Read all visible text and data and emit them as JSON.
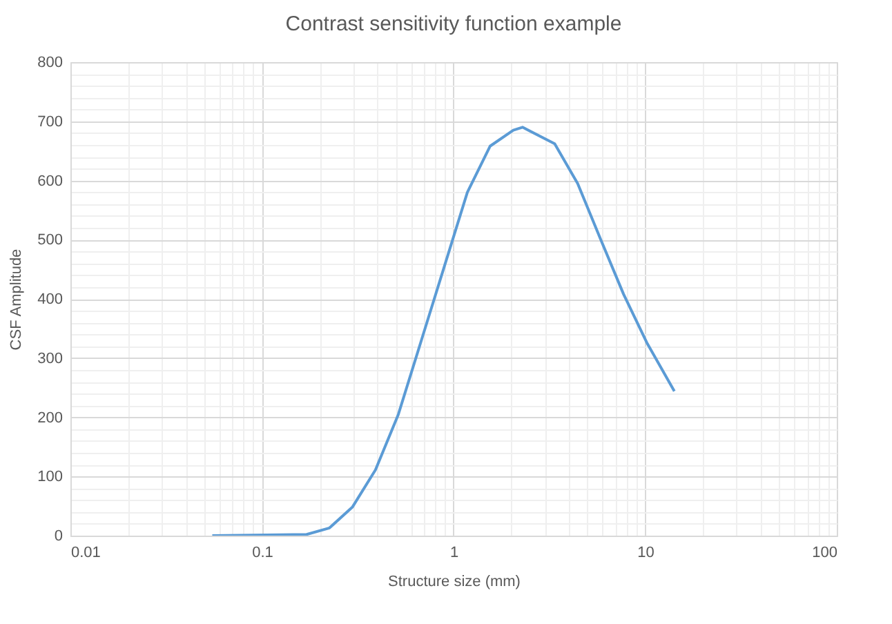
{
  "chart_data": {
    "type": "line",
    "title": "Contrast sensitivity function example",
    "xlabel": "Structure size (mm)",
    "ylabel": "CSF Amplitude",
    "x": [
      0.055,
      0.171,
      0.225,
      0.296,
      0.391,
      0.515,
      0.679,
      0.895,
      1.18,
      1.55,
      2.05,
      2.29,
      3.37,
      4.44,
      5.85,
      7.71,
      10.2,
      14.2
    ],
    "series": [
      {
        "color": "#5b9bd5",
        "values": [
          0,
          2,
          13,
          48,
          111,
          205,
          330,
          455,
          580,
          658,
          685,
          690,
          662,
          595,
          501,
          408,
          326,
          244
        ]
      }
    ],
    "log": "x",
    "grid": true,
    "xlim": [
      0.01,
      100
    ],
    "xticks": [
      0.01,
      {
        "value": 0.02,
        "label": null
      },
      {
        "value": 0.03,
        "label": null
      },
      {
        "value": 0.04,
        "label": null
      },
      {
        "value": 0.05,
        "label": null
      },
      {
        "value": 0.06,
        "label": null
      },
      {
        "value": 0.07,
        "label": null
      },
      {
        "value": 0.08,
        "label": null
      },
      {
        "value": 0.09,
        "label": null
      },
      0.1,
      {
        "value": 0.2,
        "label": null
      },
      {
        "value": 0.3,
        "label": null
      },
      {
        "value": 0.4,
        "label": null
      },
      {
        "value": 0.5,
        "label": null
      },
      {
        "value": 0.6,
        "label": null
      },
      {
        "value": 0.7,
        "label": null
      },
      {
        "value": 0.8,
        "label": null
      },
      {
        "value": 0.9,
        "label": null
      },
      1,
      {
        "value": 2,
        "label": null
      },
      {
        "value": 3,
        "label": null
      },
      {
        "value": 4,
        "label": null
      },
      {
        "value": 5,
        "label": null
      },
      {
        "value": 6,
        "label": null
      },
      {
        "value": 7,
        "label": null
      },
      {
        "value": 8,
        "label": null
      },
      {
        "value": 9,
        "label": null
      },
      10,
      {
        "value": 20,
        "label": null
      },
      {
        "value": 30,
        "label": null
      },
      {
        "value": 40,
        "label": null
      },
      {
        "value": 50,
        "label": null
      },
      {
        "value": 60,
        "label": null
      },
      {
        "value": 70,
        "label": null
      },
      {
        "value": 80,
        "label": null
      },
      {
        "value": 90,
        "label": null
      },
      100
    ],
    "ylim": [
      0,
      800
    ],
    "yticks": [
      0,
      {
        "value": 20,
        "label": null
      },
      {
        "value": 40,
        "label": null
      },
      {
        "value": 60,
        "label": null
      },
      {
        "value": 80,
        "label": null
      },
      100,
      {
        "value": 120,
        "label": null
      },
      {
        "value": 140,
        "label": null
      },
      {
        "value": 160,
        "label": null
      },
      {
        "value": 180,
        "label": null
      },
      200,
      {
        "value": 220,
        "label": null
      },
      {
        "value": 240,
        "label": null
      },
      {
        "value": 260,
        "label": null
      },
      {
        "value": 280,
        "label": null
      },
      300,
      {
        "value": 320,
        "label": null
      },
      {
        "value": 340,
        "label": null
      },
      {
        "value": 360,
        "label": null
      },
      {
        "value": 380,
        "label": null
      },
      400,
      {
        "value": 420,
        "label": null
      },
      {
        "value": 440,
        "label": null
      },
      {
        "value": 460,
        "label": null
      },
      {
        "value": 480,
        "label": null
      },
      500,
      {
        "value": 520,
        "label": null
      },
      {
        "value": 540,
        "label": null
      },
      {
        "value": 560,
        "label": null
      },
      {
        "value": 580,
        "label": null
      },
      600,
      {
        "value": 620,
        "label": null
      },
      {
        "value": 640,
        "label": null
      },
      {
        "value": 660,
        "label": null
      },
      {
        "value": 680,
        "label": null
      },
      700,
      {
        "value": 720,
        "label": null
      },
      {
        "value": 740,
        "label": null
      },
      {
        "value": 760,
        "label": null
      },
      {
        "value": 780,
        "label": null
      },
      800
    ]
  }
}
